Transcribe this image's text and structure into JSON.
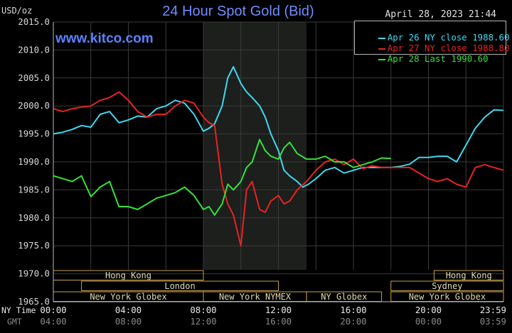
{
  "chart_data": {
    "type": "line",
    "title": "24 Hour Spot Gold (Bid)",
    "ylabel": "USD/oz",
    "timestamp": "April 28, 2023 21:44",
    "brand": "www.kitco.com",
    "ylim": [
      1965.0,
      2015.0
    ],
    "y_ticks": [
      "2015.0",
      "2010.0",
      "2005.0",
      "2000.0",
      "1995.0",
      "1990.0",
      "1985.0",
      "1980.0",
      "1975.0",
      "1970.0",
      "1965.0"
    ],
    "x_range_hours": [
      0,
      24
    ],
    "x_ticks_ny": [
      "00:00",
      "04:00",
      "08:00",
      "12:00",
      "16:00",
      "20:00",
      "23:59"
    ],
    "x_ticks_gmt": [
      "04:00",
      "08:00",
      "12:00",
      "16:00",
      "20:00",
      "00:00",
      "03:59"
    ],
    "x_axis_row_labels": [
      "NY Time",
      "GMT"
    ],
    "grid": true,
    "shaded_session_hours": [
      8.0,
      13.5
    ],
    "legend_position": "top-right",
    "series": [
      {
        "name": "Apr 26 NY close 1988.60",
        "color": "#3fd8f0",
        "x": [
          0,
          0.5,
          1,
          1.5,
          2,
          2.5,
          3,
          3.5,
          4,
          4.5,
          5,
          5.5,
          6,
          6.5,
          7,
          7.5,
          8,
          8.3,
          8.6,
          9,
          9.3,
          9.6,
          10,
          10.3,
          10.6,
          11,
          11.3,
          11.6,
          12,
          12.3,
          12.6,
          13,
          13.3,
          13.6,
          14,
          14.5,
          15,
          15.5,
          16,
          16.5,
          17,
          17.5,
          18,
          18.5,
          19,
          19.5,
          20,
          20.5,
          21,
          21.5,
          22,
          22.5,
          23,
          23.5,
          24
        ],
        "values": [
          1995.0,
          1995.3,
          1995.8,
          1996.5,
          1996.2,
          1998.5,
          1999.0,
          1997.0,
          1997.5,
          1998.2,
          1998.0,
          1999.5,
          2000.0,
          2001.0,
          2000.5,
          1998.5,
          1995.5,
          1996.0,
          1996.8,
          2000.0,
          2005.0,
          2007.0,
          2004.0,
          2002.5,
          2001.5,
          2000.0,
          1998.0,
          1995.0,
          1992.0,
          1988.5,
          1987.5,
          1986.5,
          1985.5,
          1986.0,
          1987.0,
          1988.5,
          1989.0,
          1988.0,
          1988.5,
          1989.0,
          1989.0,
          1989.0,
          1989.0,
          1989.2,
          1989.6,
          1990.8,
          1990.8,
          1991.0,
          1991.0,
          1990.0,
          1993.0,
          1996.0,
          1998.0,
          1999.3,
          1999.2
        ]
      },
      {
        "name": "Apr 27 NY close 1988.80",
        "color": "#e82323",
        "x": [
          0,
          0.5,
          1,
          1.5,
          2,
          2.5,
          3,
          3.5,
          4,
          4.5,
          5,
          5.5,
          6,
          6.5,
          7,
          7.5,
          8,
          8.3,
          8.6,
          9,
          9.3,
          9.6,
          10,
          10.3,
          10.6,
          11,
          11.3,
          11.6,
          12,
          12.3,
          12.6,
          13,
          13.5,
          14,
          14.5,
          15,
          15.5,
          16,
          16.5,
          17,
          17.5,
          18,
          18.5,
          19,
          19.5,
          20,
          20.5,
          21,
          21.5,
          22,
          22.5,
          23,
          23.5,
          24
        ],
        "values": [
          1999.5,
          1999.0,
          1999.5,
          1999.8,
          2000.0,
          2001.0,
          2001.5,
          2002.5,
          2001.0,
          1999.0,
          1998.0,
          1998.5,
          1998.5,
          2000.0,
          2001.0,
          2000.5,
          1998.0,
          1997.0,
          1996.5,
          1986.0,
          1982.5,
          1980.5,
          1975.0,
          1985.0,
          1986.5,
          1981.5,
          1981.0,
          1983.0,
          1984.0,
          1982.5,
          1983.0,
          1985.0,
          1986.5,
          1988.5,
          1990.0,
          1990.5,
          1989.5,
          1990.5,
          1988.8,
          1989.3,
          1989.0,
          1989.0,
          1989.0,
          1989.0,
          1988.0,
          1987.0,
          1986.5,
          1987.0,
          1986.0,
          1985.5,
          1989.0,
          1989.5,
          1989.0,
          1988.5
        ]
      },
      {
        "name": "Apr 28 Last 1990.60",
        "color": "#35e13a",
        "x": [
          0,
          0.5,
          1,
          1.5,
          2,
          2.5,
          3,
          3.5,
          4,
          4.5,
          5,
          5.5,
          6,
          6.5,
          7,
          7.5,
          8,
          8.3,
          8.6,
          9,
          9.3,
          9.6,
          10,
          10.3,
          10.6,
          11,
          11.3,
          11.6,
          12,
          12.3,
          12.6,
          13,
          13.5,
          14,
          14.5,
          15,
          15.5,
          16,
          16.5,
          17,
          17.5,
          18
        ],
        "values": [
          1987.5,
          1987.0,
          1986.5,
          1987.5,
          1983.8,
          1985.5,
          1986.5,
          1982.0,
          1982.0,
          1981.5,
          1982.5,
          1983.5,
          1984.0,
          1984.5,
          1985.5,
          1984.0,
          1981.5,
          1982.0,
          1980.5,
          1982.5,
          1986.0,
          1985.0,
          1986.5,
          1989.0,
          1990.0,
          1994.0,
          1992.0,
          1991.0,
          1990.5,
          1992.5,
          1993.5,
          1991.5,
          1990.5,
          1990.5,
          1991.0,
          1990.0,
          1990.0,
          1989.0,
          1989.5,
          1990.0,
          1990.7,
          1990.6
        ]
      }
    ],
    "sessions": [
      {
        "label": "Hong Kong",
        "row": 1,
        "start_hour": 0.0,
        "end_hour": 8.0
      },
      {
        "label": "Hong Kong",
        "row": 1,
        "start_hour": 20.3,
        "end_hour": 24.0
      },
      {
        "label": "London",
        "row": 2,
        "start_hour": 1.5,
        "end_hour": 12.0
      },
      {
        "label": "Sydney",
        "row": 2,
        "start_hour": 18.0,
        "end_hour": 24.0
      },
      {
        "label": "New York Globex",
        "row": 3,
        "start_hour": 0.0,
        "end_hour": 8.0
      },
      {
        "label": "New York NYMEX",
        "row": 3,
        "start_hour": 8.0,
        "end_hour": 13.5
      },
      {
        "label": "NY Globex",
        "row": 3,
        "start_hour": 13.5,
        "end_hour": 17.5
      },
      {
        "label": "New York Globex",
        "row": 3,
        "start_hour": 18.0,
        "end_hour": 24.0
      }
    ]
  }
}
